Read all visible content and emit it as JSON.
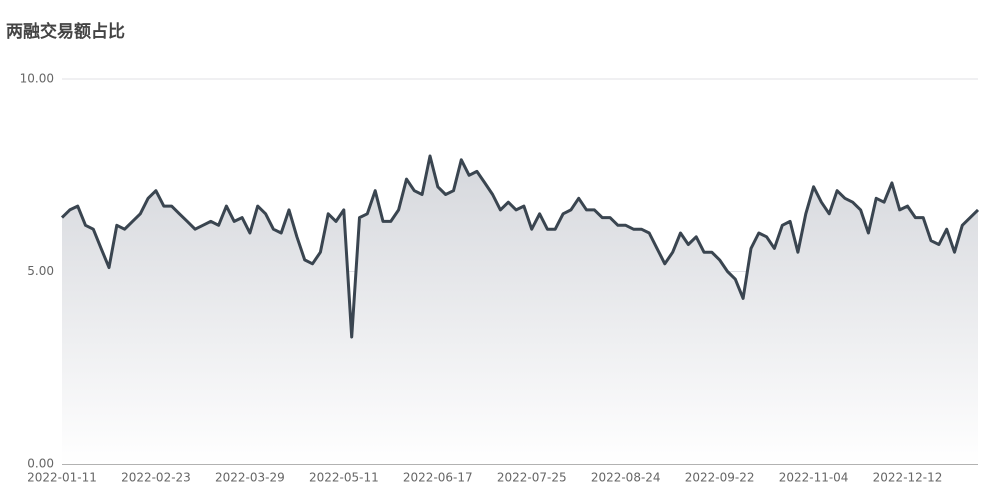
{
  "chart_data": {
    "type": "line",
    "title": "两融交易额占比",
    "categories": [
      "2022-01-11",
      null,
      null,
      null,
      null,
      null,
      null,
      null,
      null,
      null,
      null,
      null,
      "2022-02-23",
      null,
      null,
      null,
      null,
      null,
      null,
      null,
      null,
      null,
      null,
      null,
      "2022-03-29",
      null,
      null,
      null,
      null,
      null,
      null,
      null,
      null,
      null,
      null,
      null,
      "2022-05-11",
      null,
      null,
      null,
      null,
      null,
      null,
      null,
      null,
      null,
      null,
      null,
      "2022-06-17",
      null,
      null,
      null,
      null,
      null,
      null,
      null,
      null,
      null,
      null,
      null,
      "2022-07-25",
      null,
      null,
      null,
      null,
      null,
      null,
      null,
      null,
      null,
      null,
      null,
      "2022-08-24",
      null,
      null,
      null,
      null,
      null,
      null,
      null,
      null,
      null,
      null,
      null,
      "2022-09-22",
      null,
      null,
      null,
      null,
      null,
      null,
      null,
      null,
      null,
      null,
      null,
      "2022-11-04",
      null,
      null,
      null,
      null,
      null,
      null,
      null,
      null,
      null,
      null,
      null,
      "2022-12-12",
      null,
      null,
      null,
      null,
      null,
      null,
      null,
      null,
      null
    ],
    "values": [
      6.4,
      6.6,
      6.7,
      6.2,
      6.1,
      5.6,
      5.1,
      6.2,
      6.1,
      6.3,
      6.5,
      6.9,
      7.1,
      6.7,
      6.7,
      6.5,
      6.3,
      6.1,
      6.2,
      6.3,
      6.2,
      6.7,
      6.3,
      6.4,
      6.0,
      6.7,
      6.5,
      6.1,
      6.0,
      6.6,
      5.9,
      5.3,
      5.2,
      5.5,
      6.5,
      6.3,
      6.6,
      3.3,
      6.4,
      6.5,
      7.1,
      6.3,
      6.3,
      6.6,
      7.4,
      7.1,
      7.0,
      8.0,
      7.2,
      7.0,
      7.1,
      7.9,
      7.5,
      7.6,
      7.3,
      7.0,
      6.6,
      6.8,
      6.6,
      6.7,
      6.1,
      6.5,
      6.1,
      6.1,
      6.5,
      6.6,
      6.9,
      6.6,
      6.6,
      6.4,
      6.4,
      6.2,
      6.2,
      6.1,
      6.1,
      6.0,
      5.6,
      5.2,
      5.5,
      6.0,
      5.7,
      5.9,
      5.5,
      5.5,
      5.3,
      5.0,
      4.8,
      4.3,
      5.6,
      6.0,
      5.9,
      5.6,
      6.2,
      6.3,
      5.5,
      6.5,
      7.2,
      6.8,
      6.5,
      7.1,
      6.9,
      6.8,
      6.6,
      6.0,
      6.9,
      6.8,
      7.3,
      6.6,
      6.7,
      6.4,
      6.4,
      5.8,
      5.7,
      6.1,
      5.5,
      6.2,
      6.4,
      6.6
    ],
    "color": "#3a4550",
    "ylim": [
      0,
      10
    ],
    "yticks": [
      {
        "value": 0,
        "label": "0.00"
      },
      {
        "value": 5,
        "label": "5.00"
      },
      {
        "value": 10,
        "label": "10.00"
      }
    ],
    "grid": true
  }
}
